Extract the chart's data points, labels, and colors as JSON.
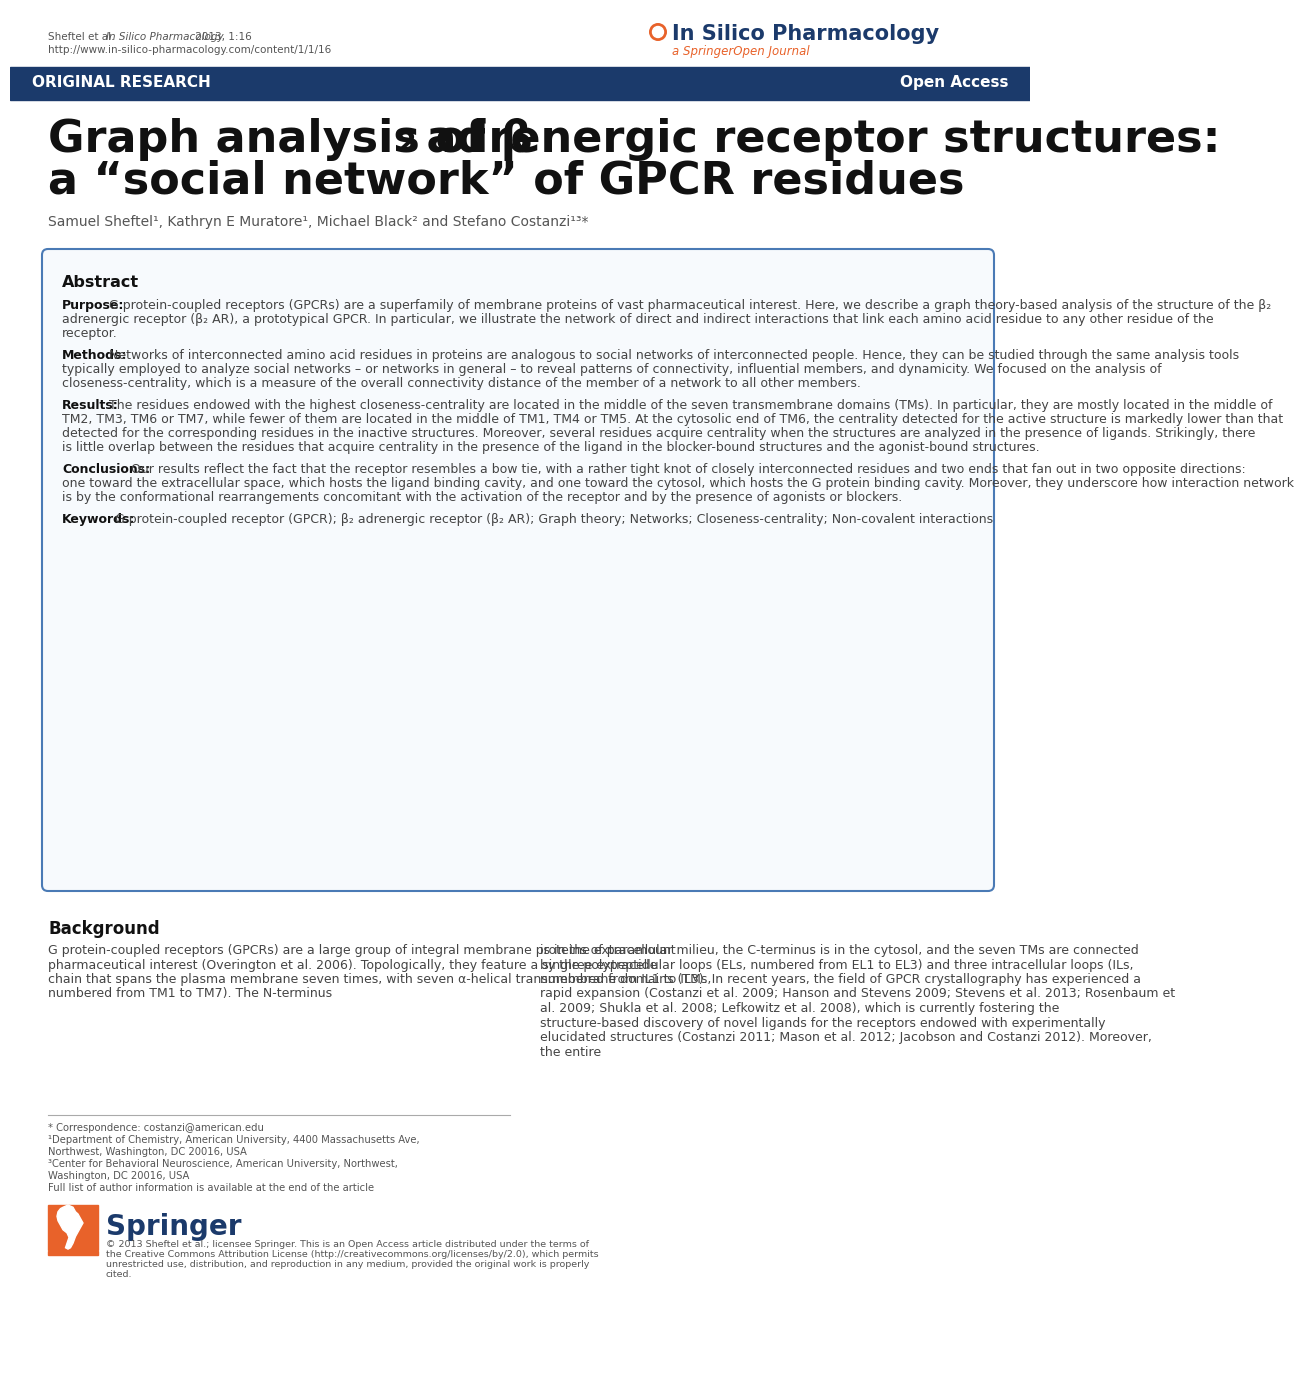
{
  "header_left_line1": "Sheftel et al. In Silico Pharmacology 2013, 1:16",
  "header_left_line2": "http://www.in-silico-pharmacology.com/content/1/1/16",
  "journal_name": "In Silico Pharmacology",
  "journal_subtitle": "a SpringerOpen Journal",
  "banner_left": "ORIGINAL RESEARCH",
  "banner_right": "Open Access",
  "banner_color": "#1b3a6b",
  "title_part1": "Graph analysis of β",
  "title_sub2": "2",
  "title_part2": " adrenergic receptor structures:",
  "title_line2": "a “social network” of GPCR residues",
  "authors": "Samuel Sheftel¹, Kathryn E Muratore¹, Michael Black² and Stefano Costanzi¹³*",
  "abstract_title": "Abstract",
  "purpose_bold": "Purpose:",
  "purpose_text": " G protein-coupled receptors (GPCRs) are a superfamily of membrane proteins of vast pharmaceutical interest. Here, we describe a graph theory-based analysis of the structure of the β₂ adrenergic receptor (β₂ AR), a prototypical GPCR. In particular, we illustrate the network of direct and indirect interactions that link each amino acid residue to any other residue of the receptor.",
  "methods_bold": "Methods:",
  "methods_text": " Networks of interconnected amino acid residues in proteins are analogous to social networks of interconnected people. Hence, they can be studied through the same analysis tools typically employed to analyze social networks – or networks in general – to reveal patterns of connectivity, influential members, and dynamicity. We focused on the analysis of closeness-centrality, which is a measure of the overall connectivity distance of the member of a network to all other members.",
  "results_bold": "Results:",
  "results_text": " The residues endowed with the highest closeness-centrality are located in the middle of the seven transmembrane domains (TMs). In particular, they are mostly located in the middle of TM2, TM3, TM6 or TM7, while fewer of them are located in the middle of TM1, TM4 or TM5. At the cytosolic end of TM6, the centrality detected for the active structure is markedly lower than that detected for the corresponding residues in the inactive structures. Moreover, several residues acquire centrality when the structures are analyzed in the presence of ligands. Strikingly, there is little overlap between the residues that acquire centrality in the presence of the ligand in the blocker-bound structures and the agonist-bound structures.",
  "conclusions_bold": "Conclusions:",
  "conclusions_text": " Our results reflect the fact that the receptor resembles a bow tie, with a rather tight knot of closely interconnected residues and two ends that fan out in two opposite directions: one toward the extracellular space, which hosts the ligand binding cavity, and one toward the cytosol, which hosts the G protein binding cavity. Moreover, they underscore how interaction network is by the conformational rearrangements concomitant with the activation of the receptor and by the presence of agonists or blockers.",
  "keywords_bold": "Keywords:",
  "keywords_text": " G protein-coupled receptor (GPCR); β₂ adrenergic receptor (β₂ AR); Graph theory; Networks; Closeness-centrality; Non-covalent interactions",
  "background_title": "Background",
  "bg_left": "G protein-coupled receptors (GPCRs) are a large group of integral membrane proteins of paramount pharmaceutical interest (Overington et al. 2006). Topologically, they feature a single polypeptide chain that spans the plasma membrane seven times, with seven α-helical transmembrane domains (TMs, numbered from TM1 to TM7). The N-terminus",
  "bg_right": "is in the extracellular milieu, the C-terminus is in the cytosol, and the seven TMs are connected by three extracellular loops (ELs, numbered from EL1 to EL3) and three intracellular loops (ILs, numbered from IL1 to IL3). In recent years, the field of GPCR crystallography has experienced a rapid expansion (Costanzi et al. 2009; Hanson and Stevens 2009; Stevens et al. 2013; Rosenbaum et al. 2009; Shukla et al. 2008; Lefkowitz et al. 2008), which is currently fostering the structure-based discovery of novel ligands for the receptors endowed with experimentally elucidated structures (Costanzi 2011; Mason et al. 2012; Jacobson and Costanzi 2012). Moreover, the entire",
  "fn1": "* Correspondence: costanzi@american.edu",
  "fn2": "¹Department of Chemistry, American University, 4400 Massachusetts Ave,",
  "fn3": "Northwest, Washington, DC 20016, USA",
  "fn4": "³Center for Behavioral Neuroscience, American University, Northwest,",
  "fn5": "Washington, DC 20016, USA",
  "fn6": "Full list of author information is available at the end of the article",
  "springer_label": "Springer",
  "copyright": "© 2013 Sheftel et al.; licensee Springer. This is an Open Access article distributed under the terms of the Creative Commons Attribution License (http://creativecommons.org/licenses/by/2.0), which permits unrestricted use, distribution, and reproduction in any medium, provided the original work is properly cited.",
  "bg_color": "#ffffff",
  "dark": "#111111",
  "mid": "#444444",
  "light": "#666666",
  "navy": "#1b3a6b",
  "orange": "#e8622a",
  "abs_border": "#4a7ab5",
  "abs_bg": "#f7fafd"
}
